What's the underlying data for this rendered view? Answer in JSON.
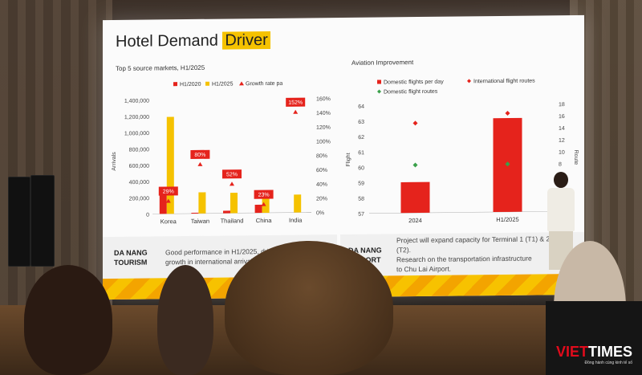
{
  "slide": {
    "title_pre": "Hotel Demand",
    "title_hl": "Driver",
    "left_chart": {
      "subtitle": "Top 5 source markets, H1/2025",
      "legend": [
        "H1/2020",
        "H1/2025",
        "Growth rate pa"
      ],
      "y_left_label": "Arrivals",
      "y_left_ticks": [
        "1,400,000",
        "1,200,000",
        "1,000,000",
        "800,000",
        "600,000",
        "400,000",
        "200,000",
        "0"
      ],
      "y_right_ticks": [
        "160%",
        "140%",
        "120%",
        "100%",
        "80%",
        "60%",
        "40%",
        "20%",
        "0%"
      ],
      "colors": {
        "h2020": "#e5231c",
        "h2025": "#f5c200",
        "growth": "#e5231c"
      }
    },
    "right_chart": {
      "subtitle": "Aviation Improvement",
      "legend": [
        "Domestic flights per day",
        "International flight routes",
        "Domestic flight routes"
      ],
      "y_left_label": "Flight",
      "y_right_label": "Route",
      "y_left_ticks": [
        "64",
        "63",
        "62",
        "61",
        "60",
        "59",
        "58",
        "57"
      ],
      "y_right_ticks": [
        "18",
        "16",
        "14",
        "12",
        "10",
        "8",
        "6",
        "4",
        "2",
        "0"
      ]
    },
    "footer_left": {
      "label_line1": "DA NANG",
      "label_line2": "TOURISM",
      "text_line1": "Good performance in H1/2025, driving strong",
      "text_line2": "growth in international arrivals"
    },
    "footer_right": {
      "label_line1": "DA NANG",
      "label_line2": "AIRPORT",
      "text_line1": "Project will expand capacity for Terminal 1 (T1) & 2",
      "text_line2": "(T2).",
      "text_line3": "Research on the transportation infrastructure",
      "text_line4": "to Chu Lai Airport."
    }
  },
  "chart_data": [
    {
      "type": "bar",
      "title": "Top 5 source markets, H1/2025",
      "categories": [
        "Korea",
        "Taiwan",
        "Thailand",
        "China",
        "India"
      ],
      "series": [
        {
          "name": "H1/2020",
          "values": [
            330000,
            10000,
            30000,
            100000,
            0
          ]
        },
        {
          "name": "H1/2025",
          "values": [
            1190000,
            260000,
            250000,
            250000,
            220000
          ]
        },
        {
          "name": "Growth rate pa",
          "values": [
            29,
            80,
            52,
            23,
            152
          ],
          "labels": [
            "29%",
            "80%",
            "52%",
            "23%",
            "152%"
          ]
        }
      ],
      "ylabel": "Arrivals",
      "ylim": [
        0,
        1400000
      ],
      "y2lim": [
        0,
        160
      ]
    },
    {
      "type": "bar",
      "title": "Aviation Improvement",
      "categories": [
        "2024",
        "H1/2025"
      ],
      "series": [
        {
          "name": "Domestic flights per day",
          "values": [
            59,
            63.1
          ]
        },
        {
          "name": "International flight routes",
          "values": [
            15,
            16.5
          ]
        },
        {
          "name": "Domestic flight routes",
          "values": [
            8,
            8
          ]
        }
      ],
      "ylabel": "Flight",
      "ylim": [
        57,
        64
      ],
      "y2label": "Route",
      "y2lim": [
        0,
        18
      ]
    }
  ],
  "watermark": {
    "brand_a": "VIET",
    "brand_b": "TIMES",
    "tagline": "Đồng hành cùng kinh tế số"
  }
}
